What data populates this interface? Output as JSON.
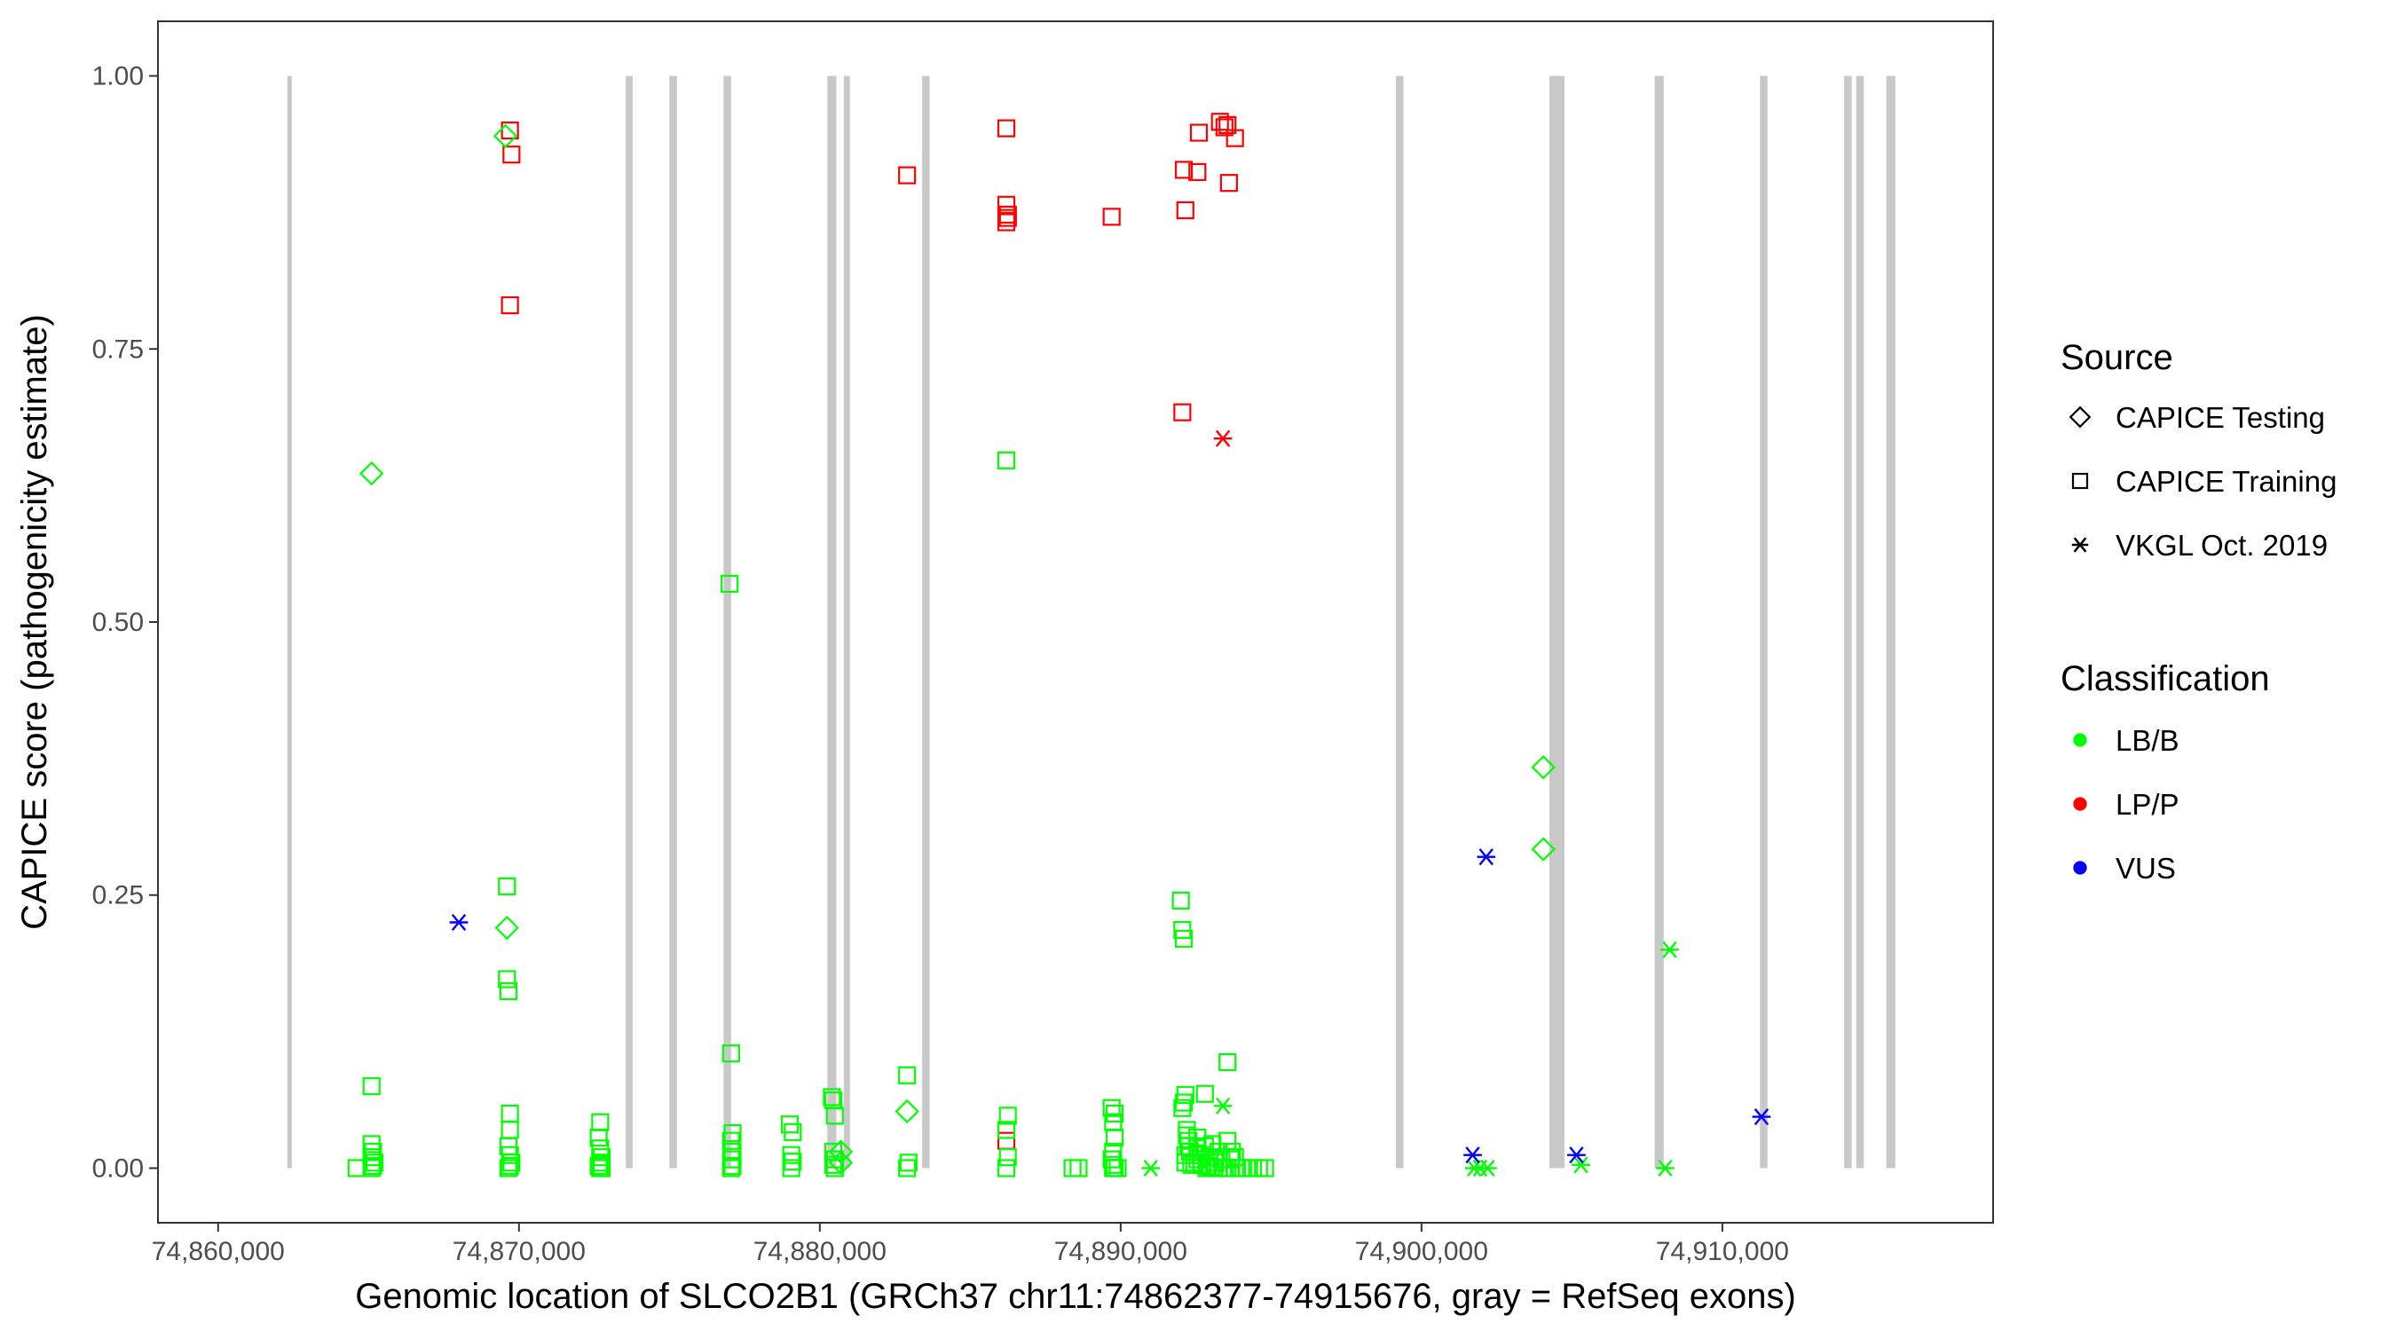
{
  "chart_data": {
    "type": "scatter",
    "xlabel": "Genomic location of SLCO2B1 (GRCh37 chr11:74862377-74915676, gray = RefSeq exons)",
    "ylabel": "CAPICE score (pathogenicity estimate)",
    "xlim": [
      74858000,
      74919000
    ],
    "ylim": [
      -0.05,
      1.05
    ],
    "x_ticks": [
      74860000,
      74870000,
      74880000,
      74890000,
      74900000,
      74910000
    ],
    "x_tick_labels": [
      "74,860,000",
      "74,870,000",
      "74,880,000",
      "74,890,000",
      "74,900,000",
      "74,910,000"
    ],
    "y_ticks": [
      0,
      0.25,
      0.5,
      0.75,
      1.0
    ],
    "y_tick_labels": [
      "0.00",
      "0.25",
      "0.50",
      "0.75",
      "1.00"
    ],
    "grid": false,
    "legend_position": "right",
    "exon_color": "#c8c8c8",
    "exons": [
      [
        74862300,
        74862420
      ],
      [
        74873550,
        74873780
      ],
      [
        74875000,
        74875250
      ],
      [
        74876800,
        74877050
      ],
      [
        74880250,
        74880550
      ],
      [
        74880800,
        74881000
      ],
      [
        74883400,
        74883650
      ],
      [
        74899150,
        74899400
      ],
      [
        74904250,
        74904750
      ],
      [
        74907750,
        74908050
      ],
      [
        74911250,
        74911500
      ],
      [
        74914050,
        74914300
      ],
      [
        74914450,
        74914700
      ],
      [
        74915450,
        74915750
      ]
    ],
    "legend": {
      "source_title": "Source",
      "source_entries": [
        {
          "label": "CAPICE Testing",
          "shape": "diamond"
        },
        {
          "label": "CAPICE Training",
          "shape": "square"
        },
        {
          "label": "VKGL Oct. 2019",
          "shape": "asterisk"
        }
      ],
      "class_title": "Classification",
      "class_entries": [
        {
          "label": "LB/B",
          "color": "#00ff00"
        },
        {
          "label": "LP/P",
          "color": "#ff0000"
        },
        {
          "label": "VUS",
          "color": "#0000ff"
        }
      ]
    },
    "colors": {
      "LB/B": "#00ff00",
      "LP/P": "#ff0000",
      "VUS": "#0000ff"
    },
    "series": [
      {
        "source": "CAPICE Training",
        "classification": "LP/P",
        "x": [
          74869700,
          74869750,
          74869700,
          74882900,
          74886200,
          74886200,
          74886250,
          74886200,
          74886250,
          74889700,
          74892050,
          74892100,
          74892150,
          74892550,
          74892600,
          74893300,
          74893450,
          74893550,
          74893600,
          74893800,
          74886200
        ],
        "y": [
          0.95,
          0.928,
          0.79,
          0.909,
          0.952,
          0.882,
          0.873,
          0.866,
          0.87,
          0.871,
          0.692,
          0.914,
          0.877,
          0.912,
          0.948,
          0.958,
          0.953,
          0.955,
          0.902,
          0.943,
          0.025
        ]
      },
      {
        "source": "VKGL Oct. 2019",
        "classification": "LP/P",
        "x": [
          74893400
        ],
        "y": [
          0.668
        ]
      },
      {
        "source": "CAPICE Training",
        "classification": "LB/B",
        "x": [
          74864600,
          74865100,
          74865100,
          74865150,
          74865100,
          74865200,
          74865150,
          74865100,
          74869600,
          74869600,
          74869650,
          74869700,
          74869700,
          74869650,
          74869700,
          74869750,
          74869700,
          74869650,
          74872700,
          74872650,
          74872700,
          74872750,
          74872700,
          74872650,
          74872700,
          74872750,
          74872700,
          74877000,
          74877050,
          74877100,
          74877050,
          74877100,
          74877050,
          74877100,
          74877050,
          74879000,
          74879100,
          74879050,
          74879100,
          74879050,
          74880400,
          74880450,
          74880500,
          74880450,
          74880500,
          74880450,
          74880500,
          74882900,
          74882950,
          74882900,
          74886200,
          74886250,
          74886200,
          74886250,
          74886200,
          74888400,
          74888600,
          74889700,
          74889800,
          74889750,
          74889800,
          74889750,
          74889700,
          74889750,
          74889800,
          74889750,
          74889900,
          74892000,
          74892050,
          74892100,
          74892150,
          74892050,
          74892100,
          74892200,
          74892250,
          74892300,
          74892450,
          74892550,
          74892700,
          74892850,
          74892900,
          74893000,
          74893100,
          74893250,
          74893400,
          74893550,
          74893650,
          74893800,
          74894000,
          74894200,
          74894400,
          74894600,
          74894800,
          74892150,
          74892250,
          74892550,
          74892650,
          74892800,
          74892950,
          74893150,
          74893250,
          74893350,
          74893550,
          74893700,
          74892150,
          74892200,
          74892350,
          74892550,
          74892800,
          74893050,
          74893550,
          74893650,
          74893800
        ],
        "y": [
          0.0,
          0.075,
          0.022,
          0.015,
          0.01,
          0.005,
          0.002,
          0.0,
          0.258,
          0.173,
          0.162,
          0.05,
          0.035,
          0.02,
          0.012,
          0.005,
          0.002,
          0.0,
          0.042,
          0.028,
          0.018,
          0.01,
          0.005,
          0.002,
          0.0,
          0.0,
          0.0,
          0.535,
          0.105,
          0.032,
          0.025,
          0.015,
          0.008,
          0.002,
          0.0,
          0.04,
          0.033,
          0.012,
          0.006,
          0.0,
          0.065,
          0.062,
          0.048,
          0.015,
          0.008,
          0.003,
          0.0,
          0.085,
          0.005,
          0.0,
          0.648,
          0.048,
          0.035,
          0.01,
          0.0,
          0.0,
          0.0,
          0.055,
          0.05,
          0.042,
          0.028,
          0.015,
          0.008,
          0.003,
          0.0,
          0.0,
          0.0,
          0.245,
          0.218,
          0.21,
          0.067,
          0.055,
          0.06,
          0.035,
          0.025,
          0.015,
          0.005,
          0.008,
          0.003,
          0.0,
          0.002,
          0.001,
          0.0,
          0.0,
          0.0,
          0.0,
          0.0,
          0.0,
          0.0,
          0.0,
          0.0,
          0.0,
          0.0,
          0.012,
          0.02,
          0.018,
          0.012,
          0.02,
          0.01,
          0.005,
          0.015,
          0.008,
          0.097,
          0.015,
          0.005,
          0.03,
          0.003,
          0.028,
          0.068,
          0.022,
          0.025,
          0.008,
          0.01
        ]
      },
      {
        "source": "CAPICE Testing",
        "classification": "LB/B",
        "x": [
          74865100,
          74869550,
          74869600,
          74880700,
          74880700,
          74882900,
          74904050,
          74904050
        ],
        "y": [
          0.636,
          0.945,
          0.22,
          0.015,
          0.005,
          0.052,
          0.367,
          0.292
        ]
      },
      {
        "source": "VKGL Oct. 2019",
        "classification": "LB/B",
        "x": [
          74891000,
          74893400,
          74901750,
          74901950,
          74902200,
          74905300,
          74908100,
          74908250
        ],
        "y": [
          0.0,
          0.057,
          0.0,
          0.0,
          0.0,
          0.003,
          0.0,
          0.2
        ]
      },
      {
        "source": "VKGL Oct. 2019",
        "classification": "VUS",
        "x": [
          74868000,
          74901700,
          74902150,
          74905150,
          74911300
        ],
        "y": [
          0.225,
          0.012,
          0.285,
          0.012,
          0.047
        ]
      }
    ]
  }
}
